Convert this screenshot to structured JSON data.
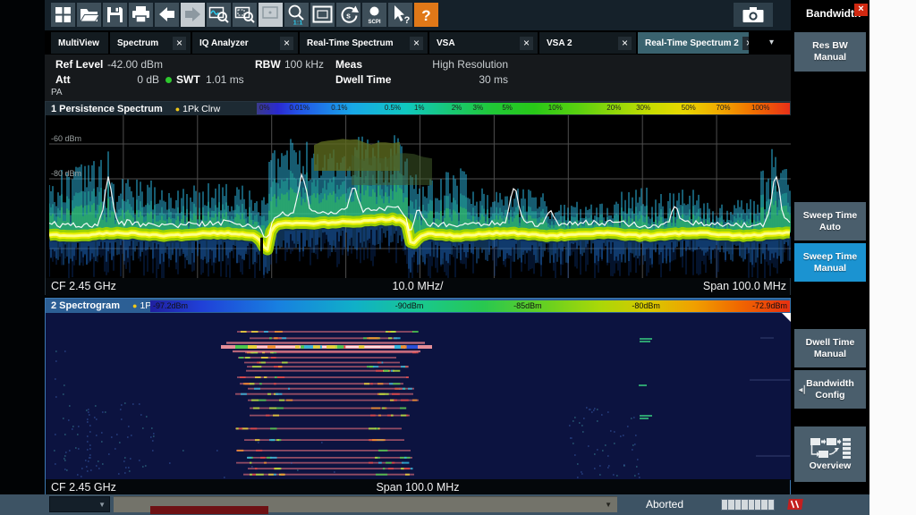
{
  "toolbar": {
    "icons": [
      {
        "name": "windows-logo",
        "disabled": false
      },
      {
        "name": "open-file",
        "disabled": false
      },
      {
        "name": "save",
        "disabled": false
      },
      {
        "name": "print",
        "disabled": false
      },
      {
        "name": "undo",
        "disabled": false
      },
      {
        "name": "redo",
        "disabled": true
      },
      {
        "name": "zoom-trace",
        "disabled": false
      },
      {
        "name": "zoom-area",
        "disabled": false
      },
      {
        "name": "zoom-off",
        "disabled": true
      },
      {
        "name": "zoom-1to1",
        "disabled": false
      },
      {
        "name": "display-frame",
        "disabled": false
      },
      {
        "name": "sweep-restart",
        "disabled": false
      },
      {
        "name": "scpi-recorder",
        "disabled": false
      },
      {
        "name": "context-help",
        "disabled": false
      },
      {
        "name": "help",
        "disabled": false
      }
    ],
    "help_accent": "#e07818"
  },
  "tabs": [
    {
      "label": "MultiView",
      "active": false,
      "closable": false,
      "has_grid_icon": true
    },
    {
      "label": "Spectrum",
      "active": false,
      "closable": true
    },
    {
      "label": "IQ Analyzer",
      "active": false,
      "closable": true
    },
    {
      "label": "Real-Time Spectrum",
      "active": false,
      "closable": true
    },
    {
      "label": "VSA",
      "active": false,
      "closable": true
    },
    {
      "label": "VSA 2",
      "active": false,
      "closable": true
    },
    {
      "label": "Real-Time Spectrum 2",
      "active": true,
      "closable": true
    }
  ],
  "tab_overflow": "▾",
  "settings": {
    "ref_level_label": "Ref Level",
    "ref_level_value": "-42.00 dBm",
    "att_label": "Att",
    "att_value": "0 dB",
    "swt_label": "SWT",
    "swt_value": "1.01 ms",
    "swt_coupling_color": "#2ec82e",
    "rbw_label": "RBW",
    "rbw_value": "100 kHz",
    "meas_label": "Meas",
    "meas_value": "High Resolution",
    "dwell_label": "Dwell Time",
    "dwell_value": "30 ms",
    "pa_label": "PA"
  },
  "window1": {
    "title": "1 Persistence Spectrum",
    "trace_label": "1Pk Clrw",
    "trace_dot_color": "#f0c818",
    "scale_labels": [
      "0%",
      "0.01%",
      "0.1%",
      "0.5%",
      "1%",
      "2%",
      "3%",
      "5%",
      "10%",
      "20%",
      "30%",
      "50%",
      "70%",
      "100%"
    ],
    "y_axis_labels": [
      "-60 dBm",
      "-80 dBm"
    ],
    "footer": {
      "cf": "CF 2.45 GHz",
      "scale_per_div": "10.0 MHz/",
      "span": "Span 100.0 MHz"
    }
  },
  "window2": {
    "title": "2 Spectrogram",
    "trace_label": "1Pk Clrw",
    "trace_dot_color": "#f0c818",
    "scale_labels": [
      "-97.2dBm",
      "-90dBm",
      "-85dBm",
      "-80dBm",
      "-72.9dBm"
    ],
    "footer": {
      "cf": "CF 2.45 GHz",
      "span": "Span 100.0 MHz"
    }
  },
  "sidebar": {
    "header": "Bandwidth",
    "close_label": "×",
    "active_color": "#1b93d1",
    "buttons": [
      {
        "name": "res-bw-manual",
        "label": "Res BW\nManual",
        "active": false,
        "submenu": false,
        "has_icon": false
      },
      {
        "name": "sweep-time-auto",
        "label": "Sweep Time\nAuto",
        "active": false,
        "submenu": false,
        "has_icon": false
      },
      {
        "name": "sweep-time-manual",
        "label": "Sweep Time\nManual",
        "active": true,
        "submenu": false,
        "has_icon": false
      },
      {
        "name": "dwell-time-manual",
        "label": "Dwell Time\nManual",
        "active": false,
        "submenu": false,
        "has_icon": false
      },
      {
        "name": "bandwidth-config",
        "label": "Bandwidth\nConfig",
        "active": false,
        "submenu": true,
        "has_icon": false
      },
      {
        "name": "overview",
        "label": "Overview",
        "active": false,
        "submenu": false,
        "has_icon": true
      }
    ]
  },
  "statusbar": {
    "status": "Aborted"
  }
}
